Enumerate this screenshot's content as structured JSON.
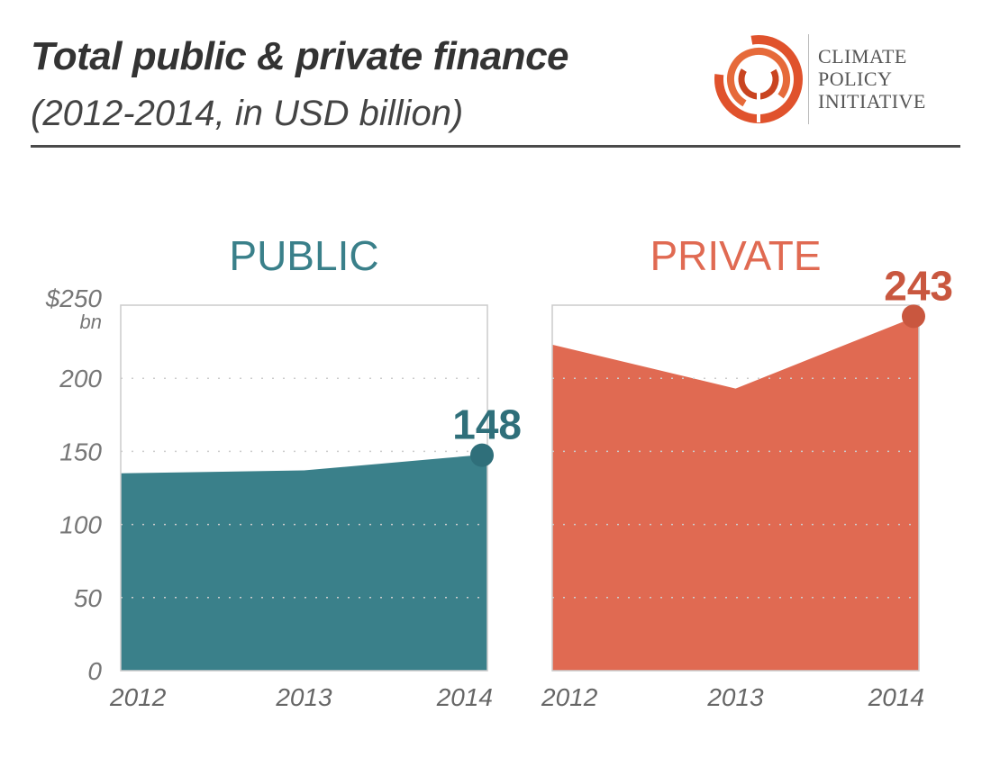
{
  "header": {
    "title": "Total public & private finance",
    "subtitle": "(2012-2014, in USD billion)"
  },
  "logo": {
    "lines": [
      "CLIMATE",
      "POLICY",
      "INITIATIVE"
    ],
    "icon": "cpi-spiral-logo",
    "color": "#e0522c"
  },
  "chart_data": {
    "type": "area",
    "ylim": [
      0,
      250
    ],
    "yticks": [
      {
        "value": 250,
        "label": "$250"
      },
      {
        "value": 200,
        "label": "200"
      },
      {
        "value": 150,
        "label": "150"
      },
      {
        "value": 100,
        "label": "100"
      },
      {
        "value": 50,
        "label": "50"
      },
      {
        "value": 0,
        "label": "0"
      }
    ],
    "yunit": "bn",
    "grid": true,
    "panels": [
      {
        "title": "PUBLIC",
        "color": "#3a808a",
        "x": [
          "2012",
          "2013",
          "2014"
        ],
        "values": [
          135,
          137,
          148
        ],
        "highlight_label": "148"
      },
      {
        "title": "PRIVATE",
        "color": "#e06a52",
        "x": [
          "2012",
          "2013",
          "2014"
        ],
        "values": [
          223,
          193,
          243
        ],
        "highlight_label": "243"
      }
    ]
  }
}
